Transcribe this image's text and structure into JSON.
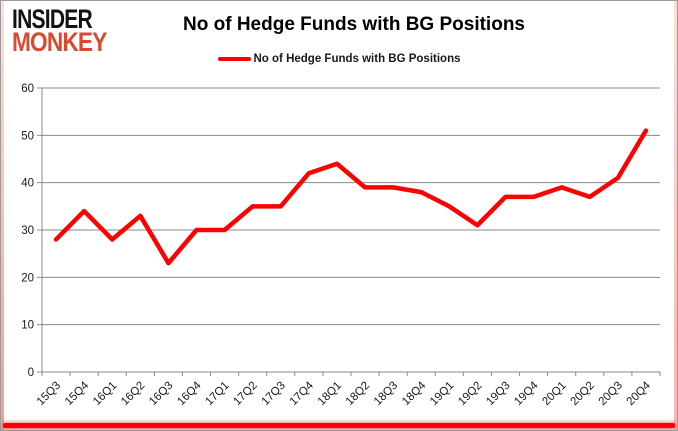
{
  "brand": {
    "line1": "INSIDER",
    "line2": "MONKEY"
  },
  "colors": {
    "accent_red": "#fe0000",
    "grid": "#8a8a8a",
    "axis": "#8a8a8a",
    "tick_text": "#1a1a1a",
    "brand_black": "#121212",
    "brand_red": "#d84a32",
    "bottom_border": "#f60000"
  },
  "chart_data": {
    "type": "line",
    "title": "No of Hedge Funds with BG Positions",
    "categories": [
      "15Q3",
      "15Q4",
      "16Q1",
      "16Q2",
      "16Q3",
      "16Q4",
      "17Q1",
      "17Q2",
      "17Q3",
      "17Q4",
      "18Q1",
      "18Q2",
      "18Q3",
      "18Q4",
      "19Q1",
      "19Q2",
      "19Q3",
      "19Q4",
      "20Q1",
      "20Q2",
      "20Q3",
      "20Q4"
    ],
    "series": [
      {
        "name": "No of Hedge Funds with BG Positions",
        "color": "#fe0000",
        "values": [
          28,
          34,
          28,
          33,
          23,
          30,
          30,
          35,
          35,
          42,
          44,
          39,
          39,
          38,
          35,
          31,
          37,
          37,
          39,
          37,
          41,
          51
        ]
      }
    ],
    "xlabel": "",
    "ylabel": "",
    "ylim": [
      0,
      60
    ],
    "ytick_step": 10,
    "yticks": [
      0,
      10,
      20,
      30,
      40,
      50,
      60
    ],
    "grid": true,
    "legend_position": "top-center"
  }
}
